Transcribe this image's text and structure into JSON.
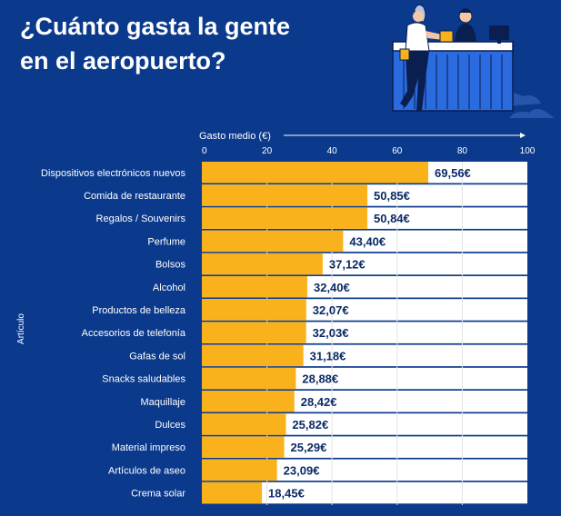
{
  "page": {
    "title_line1": "¿Cuánto gasta la gente",
    "title_line2": "en el aeropuerto?"
  },
  "colors": {
    "background": "#0b3a8c",
    "bar": "#f9b21b",
    "track": "#ffffff",
    "value_text": "#0b2a66",
    "grid": "#e3e3e3",
    "label_text": "#ffffff"
  },
  "chart_data": {
    "type": "bar",
    "orientation": "horizontal",
    "title": "¿Cuánto gasta la gente en el aeropuerto?",
    "xlabel": "Gasto medio (€)",
    "ylabel": "Artículo",
    "xlim": [
      0,
      100
    ],
    "xticks": [
      0,
      20,
      40,
      60,
      80,
      100
    ],
    "categories": [
      "Dispositivos electrónicos nuevos",
      "Comida de restaurante",
      "Regalos / Souvenirs",
      "Perfume",
      "Bolsos",
      "Alcohol",
      "Productos de belleza",
      "Accesorios de telefonía",
      "Gafas de sol",
      "Snacks saludables",
      "Maquillaje",
      "Dulces",
      "Material impreso",
      "Artículos de aseo",
      "Crema solar"
    ],
    "values": [
      69.56,
      50.85,
      50.84,
      43.4,
      37.12,
      32.4,
      32.07,
      32.03,
      31.18,
      28.88,
      28.42,
      25.82,
      25.29,
      23.09,
      18.45
    ],
    "value_labels": [
      "69,56€",
      "50,85€",
      "50,84€",
      "43,40€",
      "37,12€",
      "32,40€",
      "32,07€",
      "32,03€",
      "31,18€",
      "28,88€",
      "28,42€",
      "25,82€",
      "25,29€",
      "23,09€",
      "18,45€"
    ]
  }
}
